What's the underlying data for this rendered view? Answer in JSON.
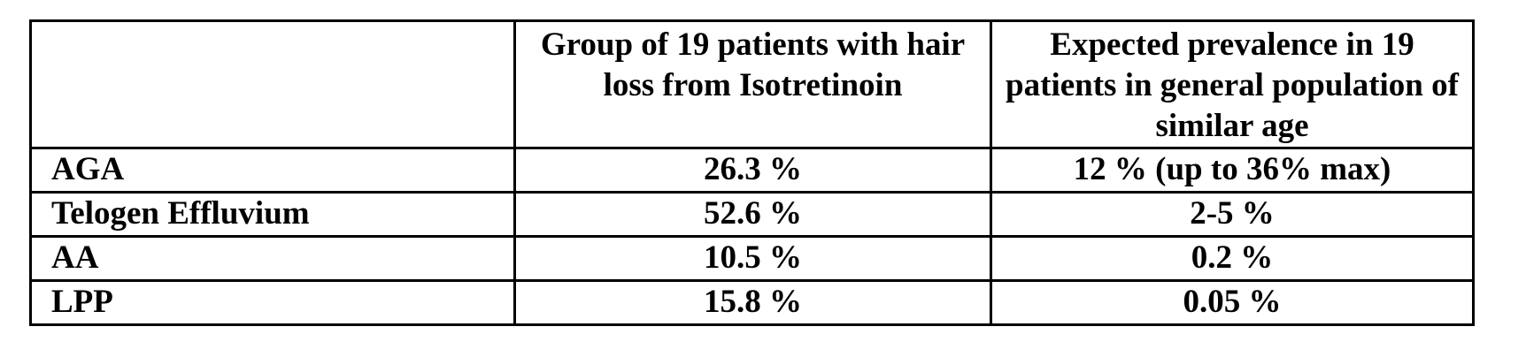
{
  "chart_data": {
    "type": "table",
    "columns": [
      "",
      "Group of 19 patients with hair loss from Isotretinoin",
      "Expected prevalence in 19 patients in general population of similar age"
    ],
    "rows": [
      [
        "AGA",
        "26.3 %",
        "12 % (up to 36% max)"
      ],
      [
        "Telogen Effluvium",
        "52.6 %",
        "2-5 %"
      ],
      [
        "AA",
        "10.5 %",
        "0.2 %"
      ],
      [
        "LPP",
        "15.8 %",
        "0.05 %"
      ]
    ]
  },
  "colors": {
    "border": "#000000",
    "text": "#000000",
    "background": "#ffffff"
  }
}
